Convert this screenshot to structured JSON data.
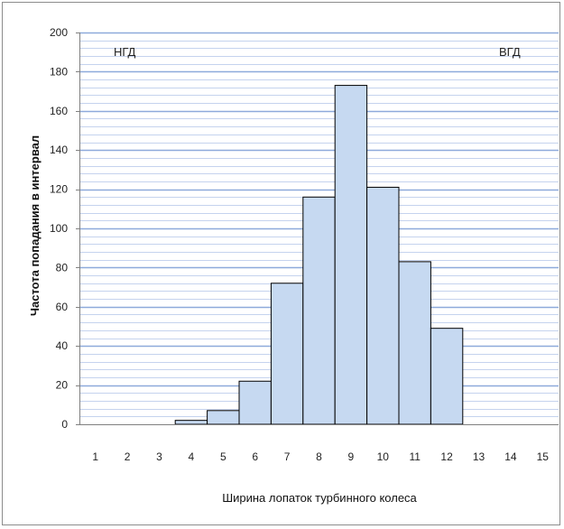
{
  "chart_data": {
    "type": "bar",
    "categories": [
      "1",
      "2",
      "3",
      "4",
      "5",
      "6",
      "7",
      "8",
      "9",
      "10",
      "11",
      "12",
      "13",
      "14",
      "15"
    ],
    "values": [
      0,
      0,
      0,
      2,
      7,
      22,
      72,
      116,
      173,
      121,
      83,
      49,
      0,
      0,
      0
    ],
    "title": "",
    "xlabel": "Ширина лопаток турбинного колеса",
    "ylabel": "Частота попадания в интервал",
    "ylim": [
      0,
      200
    ],
    "yticks": [
      0,
      20,
      40,
      60,
      80,
      100,
      120,
      140,
      160,
      180,
      200
    ],
    "grid": true,
    "annotations": [
      {
        "text": "НГД",
        "position": "top-left"
      },
      {
        "text": "ВГД",
        "position": "top-right"
      }
    ],
    "colors": {
      "bar_fill": "#c6d9f1",
      "bar_edge": "#000000",
      "major_grid": "#8eaadb",
      "minor_grid": "#c5d3ee"
    }
  }
}
